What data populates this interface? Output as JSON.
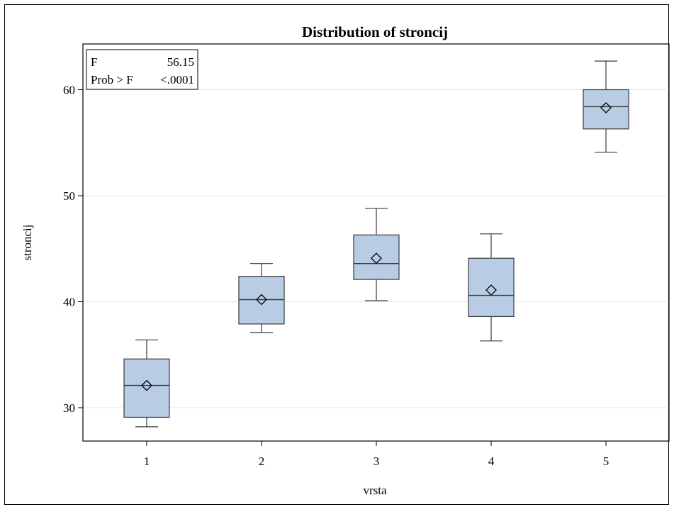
{
  "chart_data": {
    "type": "box",
    "title": "Distribution of stroncij",
    "xlabel": "vrsta",
    "ylabel": "stroncij",
    "categories": [
      "1",
      "2",
      "3",
      "4",
      "5"
    ],
    "ylim": [
      27,
      64
    ],
    "yticks": [
      30,
      40,
      50,
      60
    ],
    "grid": "horizontal",
    "boxes": [
      {
        "category": "1",
        "min": 28.2,
        "q1": 29.1,
        "median": 32.1,
        "q3": 34.6,
        "max": 36.4,
        "mean": 32.1
      },
      {
        "category": "2",
        "min": 37.1,
        "q1": 37.9,
        "median": 40.2,
        "q3": 42.4,
        "max": 43.6,
        "mean": 40.2
      },
      {
        "category": "3",
        "min": 40.1,
        "q1": 42.1,
        "median": 43.6,
        "q3": 46.3,
        "max": 48.8,
        "mean": 44.1
      },
      {
        "category": "4",
        "min": 36.3,
        "q1": 38.6,
        "median": 40.6,
        "q3": 44.1,
        "max": 46.4,
        "mean": 41.1
      },
      {
        "category": "5",
        "min": 54.1,
        "q1": 56.3,
        "median": 58.4,
        "q3": 60.0,
        "max": 62.7,
        "mean": 58.3
      }
    ],
    "stats_box": {
      "rows": [
        {
          "label": "F",
          "value": "56.15"
        },
        {
          "label": "Prob > F",
          "value": "<.0001"
        }
      ],
      "placement": "top-left"
    },
    "colors": {
      "box_fill": "#b8cce4",
      "box_stroke": "#3a3a3a",
      "grid": "#e6e6e6"
    }
  }
}
